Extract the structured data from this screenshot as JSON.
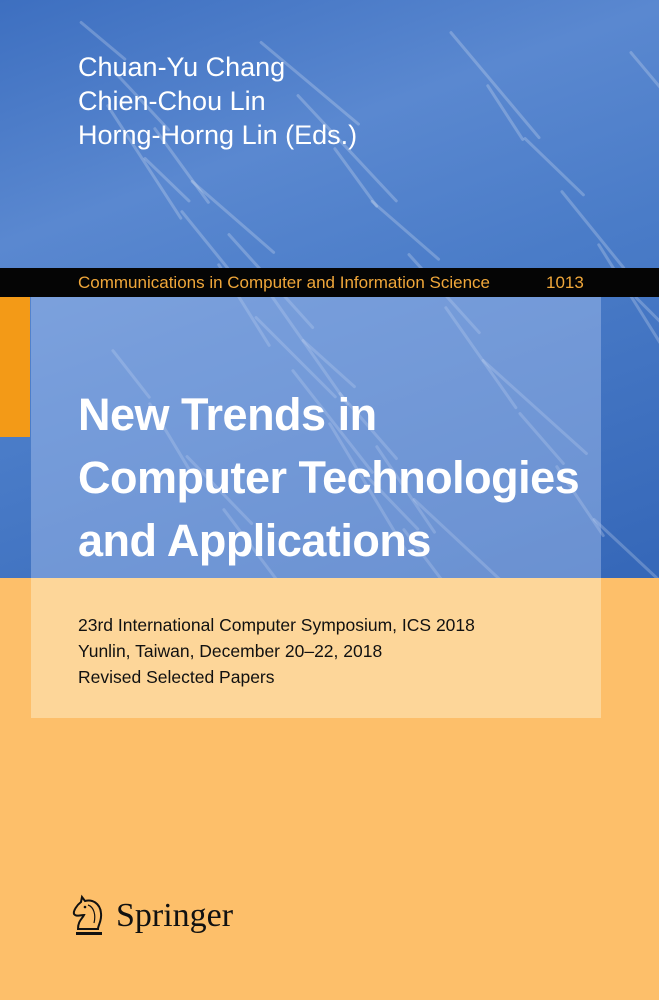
{
  "authors": [
    "Chuan-Yu Chang",
    "Chien-Chou Lin",
    "Horng-Horng Lin (Eds.)"
  ],
  "series": {
    "name": "Communications in Computer and Information Science",
    "number": "1013"
  },
  "title_lines": [
    "New Trends in",
    "Computer Technologies",
    "and Applications"
  ],
  "subtitle_lines": [
    "23rd International Computer Symposium, ICS 2018",
    "Yunlin, Taiwan, December 20–22, 2018",
    "Revised Selected Papers"
  ],
  "publisher": {
    "name": "Springer",
    "icon": "springer-horse-icon"
  },
  "colors": {
    "blue": "#4a7cc8",
    "series_band": "#050505",
    "series_text": "#f0a73a",
    "accent_tab": "#f39a17",
    "subtitle_box": "#fdd699",
    "background_orange": "#fdbf6a"
  }
}
